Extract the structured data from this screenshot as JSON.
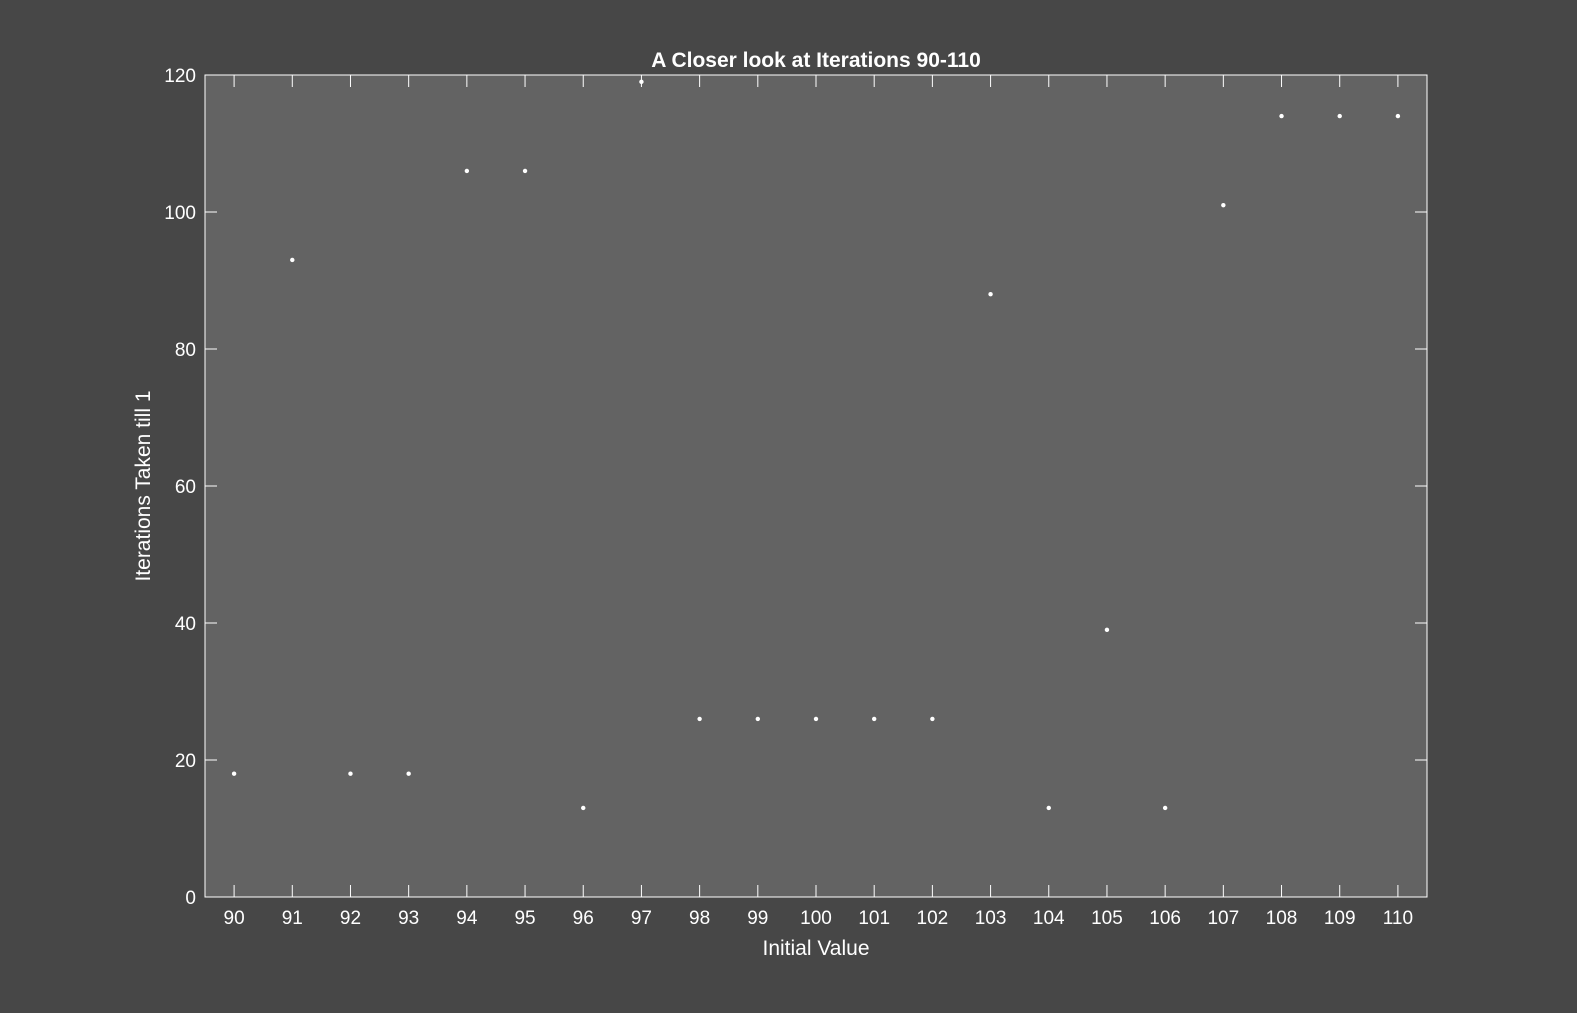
{
  "chart_data": {
    "type": "scatter",
    "title": "A Closer look at Iterations 90-110",
    "xlabel": "Initial Value",
    "ylabel": "Iterations Taken till 1",
    "xlim": [
      89.5,
      110.5
    ],
    "ylim": [
      0,
      120
    ],
    "xticks": [
      90,
      91,
      92,
      93,
      94,
      95,
      96,
      97,
      98,
      99,
      100,
      101,
      102,
      103,
      104,
      105,
      106,
      107,
      108,
      109,
      110
    ],
    "yticks": [
      0,
      20,
      40,
      60,
      80,
      100,
      120
    ],
    "grid": false,
    "colors": {
      "figure_background": "#474747",
      "axes_background": "#636363",
      "axes_edge": "#ffffff",
      "marker": "#ffffff",
      "text": "#ffffff"
    },
    "x": [
      90,
      91,
      92,
      93,
      94,
      95,
      96,
      97,
      98,
      99,
      100,
      101,
      102,
      103,
      104,
      105,
      106,
      107,
      108,
      109,
      110
    ],
    "y": [
      18,
      93,
      18,
      18,
      106,
      106,
      13,
      119,
      26,
      26,
      26,
      26,
      26,
      88,
      13,
      39,
      13,
      101,
      114,
      114,
      114
    ]
  }
}
